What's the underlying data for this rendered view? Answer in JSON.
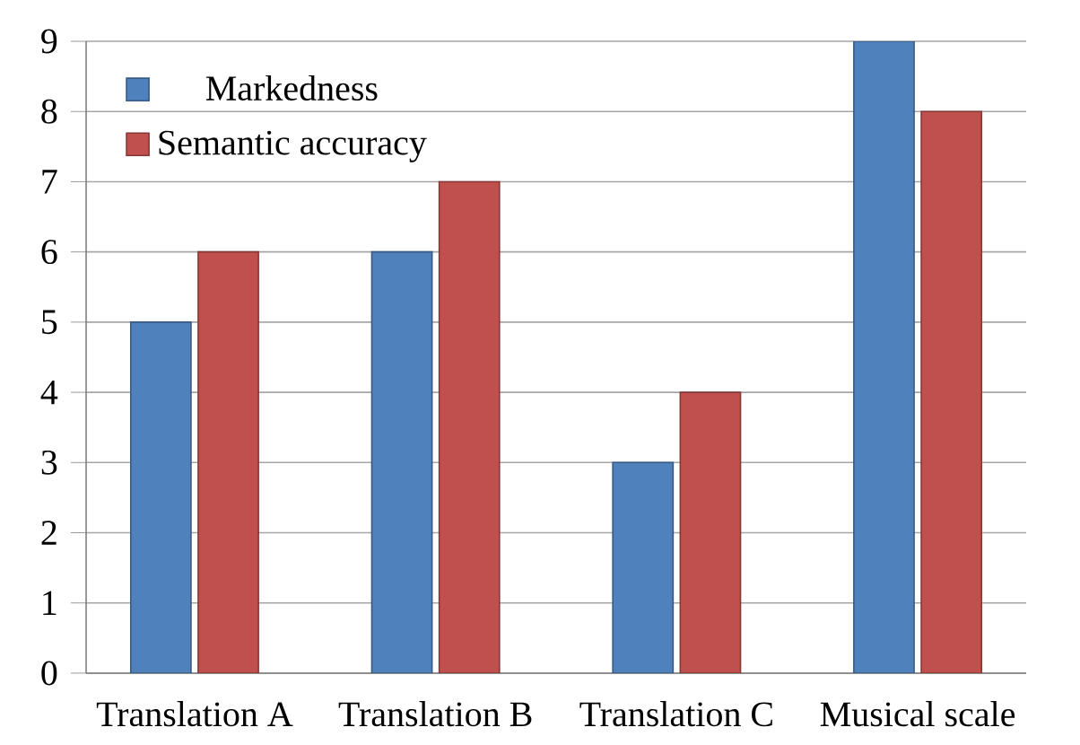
{
  "chart_data": {
    "type": "bar",
    "categories": [
      "Translation A",
      "Translation B",
      "Translation C",
      "Musical scale"
    ],
    "series": [
      {
        "name": "Markedness",
        "color": "#4f81bd",
        "values": [
          5,
          6,
          3,
          9
        ]
      },
      {
        "name": "Semantic accuracy",
        "color": "#c0504d",
        "values": [
          6,
          7,
          4,
          8
        ]
      }
    ],
    "ylim": [
      0,
      9
    ],
    "yticks": [
      0,
      1,
      2,
      3,
      4,
      5,
      6,
      7,
      8,
      9
    ],
    "grid": "y",
    "legend": "top left"
  }
}
